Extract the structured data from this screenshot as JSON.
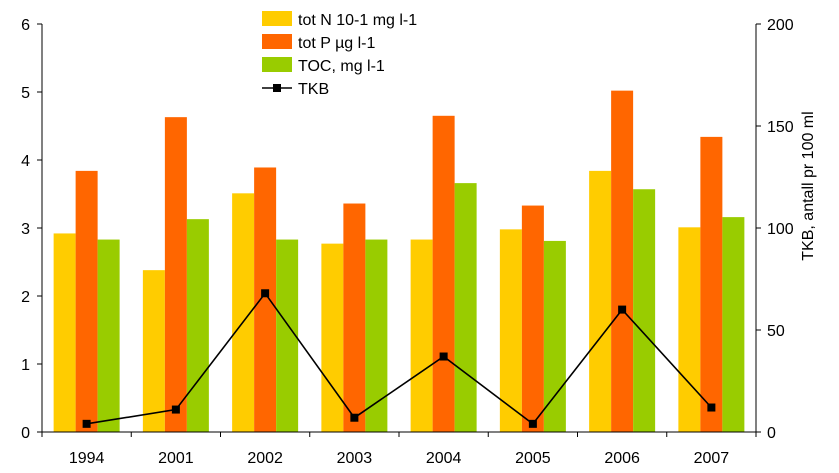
{
  "chart_data": {
    "type": "bar",
    "categories": [
      "1994",
      "2001",
      "2002",
      "2003",
      "2004",
      "2005",
      "2006",
      "2007"
    ],
    "series": [
      {
        "name": "tot N 10-1 mg l-1",
        "type": "bar",
        "axis": "left",
        "color": "#ffcc00",
        "values": [
          2.92,
          2.38,
          3.51,
          2.77,
          2.83,
          2.98,
          3.84,
          3.01
        ]
      },
      {
        "name": "tot P µg l-1",
        "type": "bar",
        "axis": "left",
        "color": "#ff6600",
        "values": [
          3.84,
          4.63,
          3.89,
          3.36,
          4.65,
          3.33,
          5.02,
          4.34
        ]
      },
      {
        "name": "TOC, mg l-1",
        "type": "bar",
        "axis": "left",
        "color": "#99cc00",
        "values": [
          2.83,
          3.13,
          2.83,
          2.83,
          3.66,
          2.81,
          3.57,
          3.16
        ]
      },
      {
        "name": "TKB",
        "type": "line",
        "axis": "right",
        "color": "#000000",
        "marker": "square",
        "values": [
          4,
          11,
          68,
          7,
          37,
          4,
          60,
          12
        ]
      }
    ],
    "ylim": [
      0,
      6
    ],
    "yticks": [
      "0",
      "1",
      "2",
      "3",
      "4",
      "5",
      "6"
    ],
    "y2lim": [
      0,
      200
    ],
    "y2ticks": [
      "0",
      "50",
      "100",
      "150",
      "200"
    ],
    "ylabel": "",
    "y2label": "TKB, antall pr 100 ml",
    "xlabel": "",
    "title": "",
    "legend_position": "top-center",
    "grid": false
  }
}
